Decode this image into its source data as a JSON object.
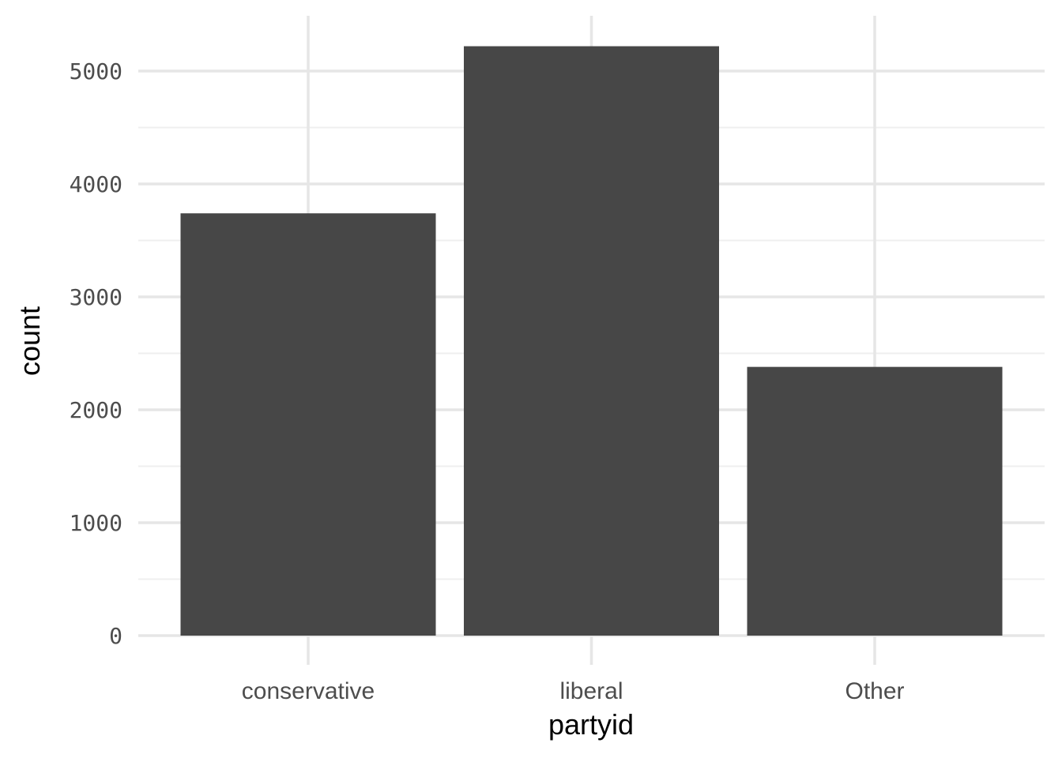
{
  "chart_data": {
    "type": "bar",
    "categories": [
      "conservative",
      "liberal",
      "Other"
    ],
    "values": [
      3740,
      5220,
      2380
    ],
    "title": "",
    "xlabel": "partyid",
    "ylabel": "count",
    "ylim": [
      0,
      5200
    ],
    "yticks": [
      0,
      1000,
      2000,
      3000,
      4000,
      5000
    ],
    "ytick_labels": [
      "0",
      "1000",
      "2000",
      "3000",
      "4000",
      "5000"
    ],
    "grid": true,
    "legend": "none",
    "colors": {
      "bar": "#474747",
      "grid_major": "#e6e6e6",
      "grid_minor": "#efefef",
      "background": "#ffffff"
    }
  }
}
